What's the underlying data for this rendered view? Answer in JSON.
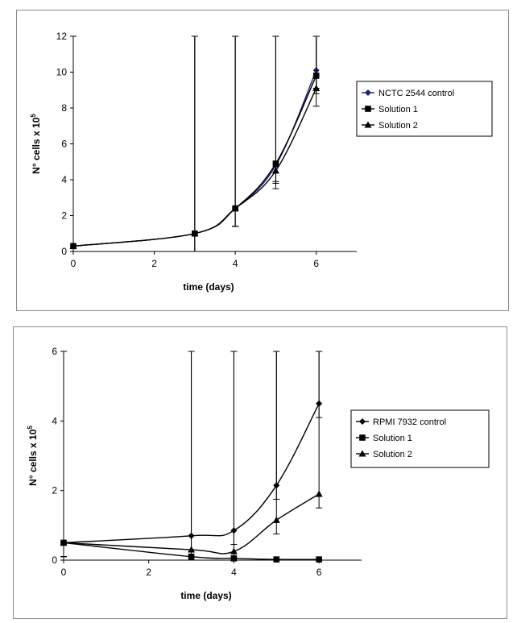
{
  "chart_data": [
    {
      "type": "line",
      "ylabel_main": "N° cells x 10",
      "ylabel_sup": "5",
      "xlabel": "time (days)",
      "xlim": [
        0,
        7
      ],
      "ylim": [
        0,
        12
      ],
      "xticks": [
        0,
        2,
        4,
        6
      ],
      "yticks": [
        0,
        2,
        4,
        6,
        8,
        10,
        12
      ],
      "legend": "right",
      "series": [
        {
          "name": "NCTC 2544 control",
          "marker": "diamond",
          "color": "#1a237e",
          "x": [
            0,
            3,
            4,
            5,
            6
          ],
          "y": [
            0.3,
            1.0,
            2.4,
            4.8,
            10.1
          ],
          "error": [
            1.0,
            1.0,
            1.0,
            1.0,
            1.0
          ]
        },
        {
          "name": "Solution 1",
          "marker": "square",
          "color": "#000000",
          "x": [
            0,
            3,
            4,
            5,
            6
          ],
          "y": [
            0.3,
            1.0,
            2.4,
            4.9,
            9.8
          ],
          "error": [
            1.0,
            1.0,
            1.0,
            1.0,
            1.0
          ]
        },
        {
          "name": "Solution 2",
          "marker": "triangle",
          "color": "#000000",
          "x": [
            0,
            3,
            4,
            5,
            6
          ],
          "y": [
            0.3,
            1.0,
            2.4,
            4.5,
            9.1
          ],
          "error": [
            1.0,
            1.0,
            1.0,
            1.0,
            1.0
          ]
        }
      ]
    },
    {
      "type": "line",
      "ylabel_main": "N° cells x 10",
      "ylabel_sup": "5",
      "xlabel": "time (days)",
      "xlim": [
        0,
        7
      ],
      "ylim": [
        0,
        6
      ],
      "xticks": [
        0,
        2,
        4,
        6
      ],
      "yticks": [
        0,
        2,
        4,
        6
      ],
      "legend": "right",
      "series": [
        {
          "name": "RPMI 7932 control",
          "marker": "diamond",
          "color": "#000000",
          "x": [
            0,
            3,
            4,
            5,
            6
          ],
          "y": [
            0.5,
            0.7,
            0.85,
            2.15,
            4.5
          ],
          "error": [
            0.4,
            0.4,
            0.4,
            0.4,
            0.4
          ]
        },
        {
          "name": "Solution 1",
          "marker": "square",
          "color": "#000000",
          "x": [
            0,
            3,
            4,
            5,
            6
          ],
          "y": [
            0.5,
            0.1,
            0.05,
            0.02,
            0.02
          ],
          "error": [
            0.4,
            0.0,
            0.0,
            0.0,
            0.0
          ]
        },
        {
          "name": "Solution 2",
          "marker": "triangle",
          "color": "#000000",
          "x": [
            0,
            3,
            4,
            5,
            6
          ],
          "y": [
            0.5,
            0.3,
            0.25,
            1.15,
            1.9
          ],
          "error": [
            0.4,
            0.2,
            0.2,
            0.4,
            0.4
          ]
        }
      ]
    }
  ]
}
